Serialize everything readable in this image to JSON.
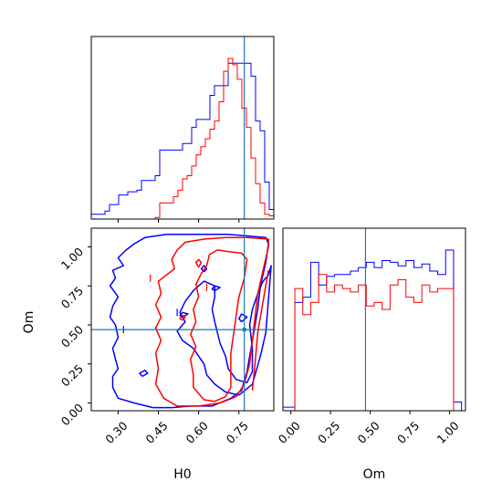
{
  "colors": {
    "series_a": "#0000ff",
    "series_b": "#ff0000",
    "truth": "#1f77b4",
    "axes": "#000000"
  },
  "chart_data": [
    {
      "type": "histogram",
      "panel": "H0 marginal",
      "xlim": [
        0.2,
        0.88
      ],
      "bins": [
        0.2,
        0.217,
        0.234,
        0.251,
        0.268,
        0.285,
        0.302,
        0.319,
        0.336,
        0.353,
        0.37,
        0.387,
        0.404,
        0.421,
        0.438,
        0.455,
        0.472,
        0.489,
        0.506,
        0.523,
        0.54,
        0.557,
        0.574,
        0.591,
        0.608,
        0.625,
        0.642,
        0.659,
        0.676,
        0.693,
        0.71,
        0.727,
        0.744,
        0.761,
        0.778,
        0.795,
        0.812,
        0.829,
        0.846,
        0.863,
        0.88
      ],
      "series": [
        {
          "color": "blue",
          "values": [
            3,
            3,
            3,
            5,
            9,
            9,
            15,
            15,
            17,
            17,
            18,
            24,
            24,
            24,
            27,
            43,
            43,
            43,
            43,
            43,
            47,
            47,
            57,
            62,
            62,
            62,
            77,
            83,
            83,
            83,
            97,
            97,
            97,
            97,
            97,
            89,
            61,
            55,
            23,
            6
          ]
        },
        {
          "color": "red",
          "values": [
            0,
            0,
            0,
            0,
            0,
            0,
            0,
            0,
            0,
            0,
            0,
            0,
            0,
            0,
            1,
            10,
            10,
            10,
            14,
            18,
            25,
            27,
            33,
            40,
            45,
            50,
            56,
            61,
            73,
            92,
            100,
            96,
            87,
            69,
            57,
            38,
            22,
            10,
            3,
            2
          ]
        }
      ],
      "truth_x": 0.77
    },
    {
      "type": "contour",
      "panel": "H0 vs Om",
      "xlabel": "H0",
      "ylabel": "Om",
      "xlim": [
        0.2,
        0.88
      ],
      "ylim": [
        -0.05,
        1.12
      ],
      "xticks": [
        "0.30",
        "0.45",
        "0.60",
        "0.75"
      ],
      "yticks": [
        "0.00",
        "0.25",
        "0.50",
        "0.75",
        "1.00"
      ],
      "series": [
        {
          "color": "blue",
          "contours": [
            [
              [
                0.43,
                -0.03
              ],
              [
                0.36,
                0.0
              ],
              [
                0.3,
                0.03
              ],
              [
                0.28,
                0.1
              ],
              [
                0.28,
                0.17
              ],
              [
                0.3,
                0.22
              ],
              [
                0.29,
                0.28
              ],
              [
                0.28,
                0.35
              ],
              [
                0.3,
                0.42
              ],
              [
                0.29,
                0.5
              ],
              [
                0.27,
                0.55
              ],
              [
                0.28,
                0.62
              ],
              [
                0.3,
                0.68
              ],
              [
                0.27,
                0.75
              ],
              [
                0.29,
                0.8
              ],
              [
                0.28,
                0.85
              ],
              [
                0.32,
                0.88
              ],
              [
                0.3,
                0.93
              ],
              [
                0.33,
                0.98
              ],
              [
                0.36,
                1.02
              ],
              [
                0.4,
                1.06
              ],
              [
                0.48,
                1.08
              ],
              [
                0.55,
                1.08
              ],
              [
                0.63,
                1.08
              ],
              [
                0.71,
                1.08
              ],
              [
                0.78,
                1.07
              ],
              [
                0.85,
                1.06
              ],
              [
                0.86,
                1.02
              ],
              [
                0.85,
                0.9
              ],
              [
                0.83,
                0.75
              ],
              [
                0.82,
                0.6
              ],
              [
                0.8,
                0.4
              ],
              [
                0.78,
                0.2
              ],
              [
                0.76,
                0.08
              ],
              [
                0.72,
                0.03
              ],
              [
                0.65,
                -0.02
              ],
              [
                0.57,
                -0.02
              ],
              [
                0.5,
                -0.03
              ],
              [
                0.43,
                -0.03
              ]
            ],
            [
              [
                0.58,
                0.35
              ],
              [
                0.54,
                0.4
              ],
              [
                0.52,
                0.46
              ],
              [
                0.55,
                0.52
              ],
              [
                0.53,
                0.58
              ],
              [
                0.55,
                0.65
              ],
              [
                0.58,
                0.72
              ],
              [
                0.62,
                0.78
              ],
              [
                0.66,
                0.75
              ],
              [
                0.66,
                0.68
              ],
              [
                0.65,
                0.6
              ],
              [
                0.66,
                0.52
              ],
              [
                0.67,
                0.45
              ],
              [
                0.68,
                0.38
              ],
              [
                0.7,
                0.3
              ],
              [
                0.71,
                0.22
              ],
              [
                0.74,
                0.15
              ],
              [
                0.78,
                0.13
              ],
              [
                0.8,
                0.2
              ],
              [
                0.8,
                0.35
              ],
              [
                0.79,
                0.5
              ],
              [
                0.8,
                0.6
              ],
              [
                0.82,
                0.7
              ],
              [
                0.84,
                0.78
              ],
              [
                0.86,
                0.82
              ],
              [
                0.87,
                0.88
              ],
              [
                0.86,
                0.66
              ],
              [
                0.85,
                0.45
              ],
              [
                0.83,
                0.3
              ],
              [
                0.8,
                0.12
              ],
              [
                0.75,
                0.05
              ],
              [
                0.7,
                0.07
              ],
              [
                0.66,
                0.12
              ],
              [
                0.63,
                0.18
              ],
              [
                0.62,
                0.25
              ],
              [
                0.6,
                0.3
              ],
              [
                0.58,
                0.35
              ]
            ],
            [
              [
                0.62,
                0.84
              ],
              [
                0.63,
                0.86
              ],
              [
                0.62,
                0.88
              ],
              [
                0.61,
                0.86
              ],
              [
                0.62,
                0.84
              ]
            ],
            [
              [
                0.54,
                0.55
              ],
              [
                0.56,
                0.57
              ],
              [
                0.54,
                0.58
              ],
              [
                0.53,
                0.56
              ],
              [
                0.54,
                0.55
              ]
            ],
            [
              [
                0.39,
                0.17
              ],
              [
                0.41,
                0.19
              ],
              [
                0.4,
                0.21
              ],
              [
                0.38,
                0.19
              ],
              [
                0.39,
                0.17
              ]
            ],
            [
              [
                0.66,
                0.72
              ],
              [
                0.68,
                0.74
              ],
              [
                0.66,
                0.75
              ],
              [
                0.65,
                0.73
              ],
              [
                0.66,
                0.72
              ]
            ],
            [
              [
                0.76,
                0.52
              ],
              [
                0.78,
                0.55
              ],
              [
                0.76,
                0.57
              ],
              [
                0.75,
                0.54
              ],
              [
                0.76,
                0.52
              ]
            ]
          ]
        },
        {
          "color": "red",
          "contours": [
            [
              [
                0.52,
                -0.02
              ],
              [
                0.47,
                0.03
              ],
              [
                0.44,
                0.12
              ],
              [
                0.45,
                0.22
              ],
              [
                0.44,
                0.32
              ],
              [
                0.46,
                0.4
              ],
              [
                0.44,
                0.48
              ],
              [
                0.46,
                0.55
              ],
              [
                0.44,
                0.63
              ],
              [
                0.46,
                0.7
              ],
              [
                0.45,
                0.78
              ],
              [
                0.48,
                0.82
              ],
              [
                0.51,
                0.86
              ],
              [
                0.5,
                0.92
              ],
              [
                0.52,
                0.98
              ],
              [
                0.55,
                1.03
              ],
              [
                0.62,
                1.05
              ],
              [
                0.7,
                1.06
              ],
              [
                0.78,
                1.06
              ],
              [
                0.86,
                1.05
              ],
              [
                0.86,
                1.0
              ],
              [
                0.84,
                0.85
              ],
              [
                0.82,
                0.7
              ],
              [
                0.81,
                0.55
              ],
              [
                0.8,
                0.4
              ],
              [
                0.79,
                0.25
              ],
              [
                0.77,
                0.12
              ],
              [
                0.74,
                0.04
              ],
              [
                0.68,
                0.0
              ],
              [
                0.6,
                -0.02
              ],
              [
                0.52,
                -0.02
              ]
            ],
            [
              [
                0.62,
                0.02
              ],
              [
                0.58,
                0.1
              ],
              [
                0.58,
                0.18
              ],
              [
                0.57,
                0.28
              ],
              [
                0.59,
                0.36
              ],
              [
                0.57,
                0.44
              ],
              [
                0.59,
                0.52
              ],
              [
                0.58,
                0.6
              ],
              [
                0.6,
                0.68
              ],
              [
                0.59,
                0.76
              ],
              [
                0.61,
                0.83
              ],
              [
                0.63,
                0.88
              ],
              [
                0.64,
                0.95
              ],
              [
                0.67,
                0.98
              ],
              [
                0.71,
                0.97
              ],
              [
                0.76,
                0.96
              ],
              [
                0.78,
                0.92
              ],
              [
                0.77,
                0.8
              ],
              [
                0.75,
                0.68
              ],
              [
                0.74,
                0.56
              ],
              [
                0.73,
                0.44
              ],
              [
                0.72,
                0.32
              ],
              [
                0.72,
                0.2
              ],
              [
                0.72,
                0.1
              ],
              [
                0.7,
                0.04
              ],
              [
                0.66,
                0.01
              ],
              [
                0.62,
                0.02
              ]
            ],
            [
              [
                0.8,
                0.08
              ],
              [
                0.81,
                0.25
              ],
              [
                0.82,
                0.45
              ],
              [
                0.84,
                0.65
              ],
              [
                0.86,
                0.85
              ]
            ],
            [
              [
                0.6,
                0.87
              ],
              [
                0.61,
                0.9
              ],
              [
                0.6,
                0.92
              ],
              [
                0.59,
                0.9
              ],
              [
                0.6,
                0.87
              ]
            ],
            [
              [
                0.54,
                0.53
              ],
              [
                0.55,
                0.55
              ],
              [
                0.54,
                0.56
              ],
              [
                0.53,
                0.54
              ],
              [
                0.54,
                0.53
              ]
            ]
          ]
        }
      ],
      "crosshair": {
        "color": "#1f77b4",
        "x": 0.77,
        "y": 0.47
      }
    },
    {
      "type": "histogram",
      "panel": "Om marginal",
      "xlabel": "Om",
      "xlim": [
        -0.05,
        1.1
      ],
      "xticks": [
        "0.00",
        "0.25",
        "0.50",
        "0.75",
        "1.00"
      ],
      "bins": [
        -0.075,
        -0.025,
        0.025,
        0.075,
        0.125,
        0.175,
        0.225,
        0.275,
        0.325,
        0.375,
        0.425,
        0.475,
        0.525,
        0.575,
        0.625,
        0.675,
        0.725,
        0.775,
        0.825,
        0.875,
        0.925,
        0.975,
        1.025,
        1.075
      ],
      "series": [
        {
          "color": "blue",
          "values": [
            0.02,
            0.02,
            0.62,
            0.65,
            0.85,
            0.72,
            0.77,
            0.78,
            0.78,
            0.8,
            0.82,
            0.85,
            0.82,
            0.86,
            0.85,
            0.83,
            0.86,
            0.82,
            0.84,
            0.8,
            0.78,
            0.92,
            0.05,
            0.0
          ]
        },
        {
          "color": "red",
          "values": [
            0.0,
            0.0,
            0.7,
            0.55,
            0.62,
            0.78,
            0.68,
            0.72,
            0.7,
            0.68,
            0.72,
            0.6,
            0.62,
            0.58,
            0.72,
            0.75,
            0.65,
            0.62,
            0.72,
            0.68,
            0.7,
            0.7,
            0.0,
            0.0
          ]
        }
      ],
      "truth_x": 0.47
    }
  ]
}
